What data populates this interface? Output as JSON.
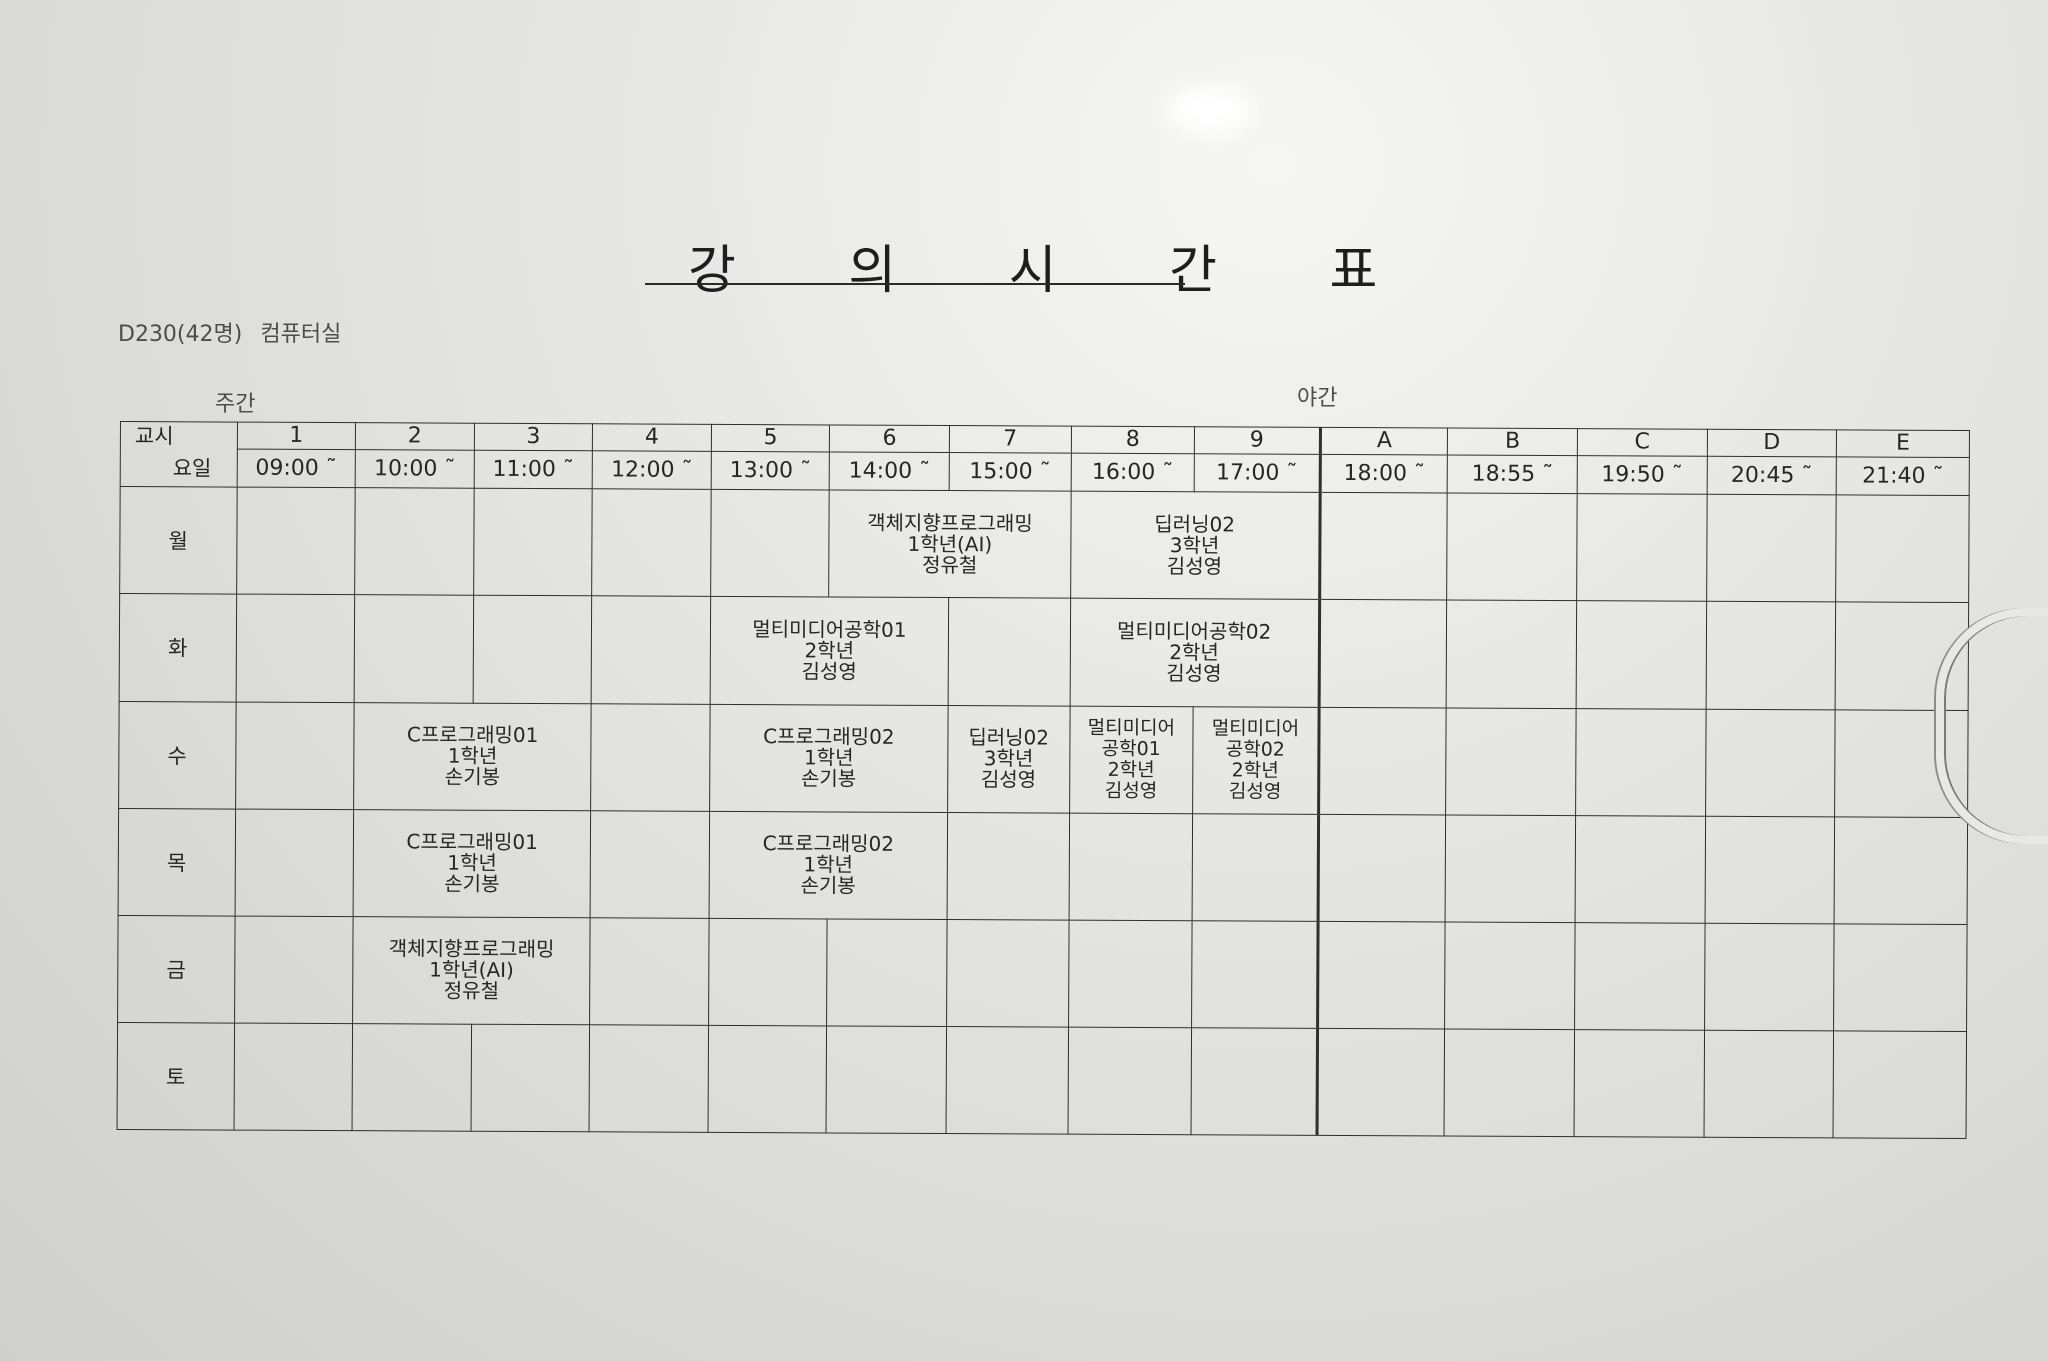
{
  "title": "강 의 시 간 표",
  "room": {
    "code": "D230(42명)",
    "name": "컴퓨터실"
  },
  "shifts": {
    "day": "주간",
    "night": "야간"
  },
  "header": {
    "corner_top": "교시",
    "corner_bottom": "요일",
    "periods": [
      {
        "num": "1",
        "time": "09:00 ˜"
      },
      {
        "num": "2",
        "time": "10:00 ˜"
      },
      {
        "num": "3",
        "time": "11:00 ˜"
      },
      {
        "num": "4",
        "time": "12:00 ˜"
      },
      {
        "num": "5",
        "time": "13:00 ˜"
      },
      {
        "num": "6",
        "time": "14:00 ˜"
      },
      {
        "num": "7",
        "time": "15:00 ˜"
      },
      {
        "num": "8",
        "time": "16:00 ˜"
      },
      {
        "num": "9",
        "time": "17:00 ˜"
      },
      {
        "num": "A",
        "time": "18:00 ˜"
      },
      {
        "num": "B",
        "time": "18:55 ˜"
      },
      {
        "num": "C",
        "time": "19:50 ˜"
      },
      {
        "num": "D",
        "time": "20:45 ˜"
      },
      {
        "num": "E",
        "time": "21:40 ˜"
      }
    ]
  },
  "days": [
    "월",
    "화",
    "수",
    "목",
    "금",
    "토"
  ],
  "courses": {
    "mon_oop": [
      "객체지향프로그래밍",
      "1학년(AI)",
      "정유철"
    ],
    "mon_dl": [
      "딥러닝02",
      "3학년",
      "김성영"
    ],
    "tue_mm01": [
      "멀티미디어공학01",
      "2학년",
      "김성영"
    ],
    "tue_mm02": [
      "멀티미디어공학02",
      "2학년",
      "김성영"
    ],
    "wed_c01": [
      "C프로그래밍01",
      "1학년",
      "손기봉"
    ],
    "wed_c02": [
      "C프로그래밍02",
      "1학년",
      "손기봉"
    ],
    "wed_dl": [
      "딥러닝02",
      "3학년",
      "김성영"
    ],
    "wed_mm01": [
      "멀티미디어",
      "공학01",
      "2학년",
      "김성영"
    ],
    "wed_mm02": [
      "멀티미디어",
      "공학02",
      "2학년",
      "김성영"
    ],
    "thu_c01": [
      "C프로그래밍01",
      "1학년",
      "손기봉"
    ],
    "thu_c02": [
      "C프로그래밍02",
      "1학년",
      "손기봉"
    ],
    "fri_oop": [
      "객체지향프로그래밍",
      "1학년(AI)",
      "정유철"
    ]
  }
}
